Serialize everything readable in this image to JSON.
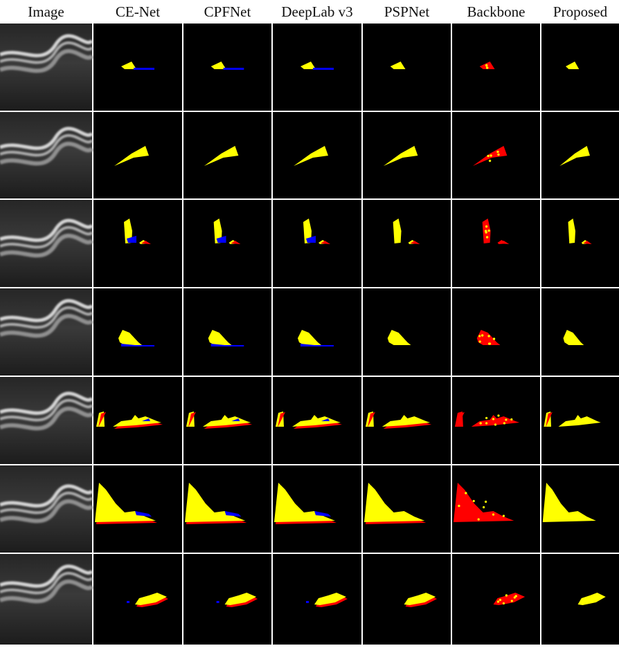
{
  "header": {
    "columns": [
      "Image",
      "CE-Net",
      "CPFNet",
      "DeepLab v3",
      "PSPNet",
      "Backbone",
      "Proposed"
    ]
  }
}
